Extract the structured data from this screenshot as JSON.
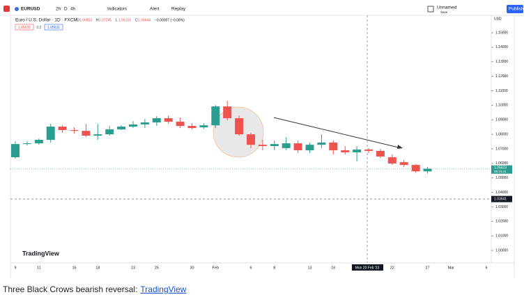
{
  "toolbar": {
    "symbol": "EURUSD",
    "intervals": [
      "2h",
      "D",
      "4h"
    ],
    "indicators": "Indicators",
    "alert": "Alert",
    "replay": "Replay",
    "layout_name": "Unnamed",
    "save": "Save",
    "publish": "Publish"
  },
  "chart_data": {
    "type": "candlestick",
    "title": "Euro / U.S. Dollar · 1D · FXCM",
    "legend_values": [
      "O",
      "1.06853",
      "H",
      "1.07245",
      "L",
      "1.06151",
      "C",
      "1.06644",
      "−0.00087 (−0.08%)"
    ],
    "indicator_boxes": [
      "1.05631",
      "0.2",
      "1.05631"
    ],
    "currency": "USD",
    "logo": "TradingView",
    "up_color": "#2a9d8f",
    "down_color": "#ef5350",
    "categories": [
      "9",
      null,
      "11",
      null,
      null,
      "16",
      null,
      "18",
      null,
      null,
      "23",
      null,
      "25",
      null,
      null,
      "30",
      null,
      "Feb",
      null,
      null,
      "6",
      null,
      "8",
      null,
      null,
      "13",
      null,
      "16",
      null,
      null,
      null,
      null,
      "22",
      null,
      null,
      "27",
      null,
      "Mar",
      null,
      null,
      "6"
    ],
    "open": [
      1.0642,
      1.0733,
      1.0738,
      1.0762,
      1.0853,
      1.0829,
      1.0824,
      1.0791,
      1.08,
      1.0834,
      1.0853,
      1.0868,
      1.0882,
      1.0911,
      1.0887,
      1.0858,
      1.0848,
      1.0862,
      1.0992,
      1.0911,
      1.08,
      1.0728,
      1.0719,
      1.0705,
      1.0738,
      1.069,
      1.0728,
      1.0743,
      1.069,
      1.0676,
      1.0695,
      1.0686,
      1.0642,
      1.0608,
      1.0589,
      1.0545,
      null,
      null,
      null,
      null,
      null
    ],
    "high": [
      1.0752,
      1.0752,
      1.0771,
      1.0872,
      1.0862,
      1.0848,
      1.0872,
      1.0872,
      1.0858,
      1.0862,
      1.0891,
      1.0905,
      1.0925,
      1.093,
      1.0915,
      1.0877,
      1.0877,
      1.1001,
      1.103,
      1.093,
      1.081,
      1.0762,
      1.0757,
      1.0781,
      1.0757,
      1.0742,
      1.08,
      1.0757,
      1.0719,
      1.0719,
      1.0705,
      1.07,
      1.0661,
      1.0623,
      1.0594,
      1.0575,
      null,
      null,
      null,
      null,
      null
    ],
    "low": [
      1.0632,
      1.0723,
      1.0728,
      1.0743,
      1.081,
      1.0805,
      1.0781,
      1.0762,
      1.079,
      1.0829,
      1.0843,
      1.0843,
      1.0858,
      1.0872,
      1.0843,
      1.0834,
      1.0838,
      1.0843,
      1.0896,
      1.079,
      1.0705,
      1.069,
      1.069,
      1.069,
      1.0671,
      1.0671,
      1.0705,
      1.0661,
      1.0661,
      1.0613,
      1.0671,
      1.0637,
      1.059,
      1.0575,
      1.0535,
      1.0532,
      null,
      null,
      null,
      null,
      null
    ],
    "close": [
      1.0733,
      1.0738,
      1.0762,
      1.0853,
      1.0829,
      1.0824,
      1.0791,
      1.08,
      1.0834,
      1.0853,
      1.0868,
      1.0882,
      1.0911,
      1.0887,
      1.0858,
      1.0843,
      1.0862,
      1.0992,
      1.0911,
      1.08,
      1.0728,
      1.0719,
      1.0733,
      1.0738,
      1.069,
      1.0728,
      1.0743,
      1.069,
      1.0676,
      1.0695,
      1.0686,
      1.0647,
      1.0599,
      1.0589,
      1.0545,
      1.0563,
      null,
      null,
      null,
      null,
      null
    ],
    "ylim": [
      0.9914,
      1.162
    ],
    "yticks": [
      {
        "value": 1.15,
        "label": "1.15000"
      },
      {
        "value": 1.14,
        "label": "1.14000"
      },
      {
        "value": 1.13,
        "label": "1.13000"
      },
      {
        "value": 1.12,
        "label": "1.12000"
      },
      {
        "value": 1.11,
        "label": "1.11000"
      },
      {
        "value": 1.1,
        "label": "1.10000"
      },
      {
        "value": 1.09,
        "label": "1.09000"
      },
      {
        "value": 1.08,
        "label": "1.08000"
      },
      {
        "value": 1.07,
        "label": "1.07000"
      },
      {
        "value": 1.06,
        "label": "1.06000"
      },
      {
        "value": 1.05,
        "label": "1.05000"
      },
      {
        "value": 1.04,
        "label": "1.04000"
      },
      {
        "value": 1.03,
        "label": "1.03000"
      },
      {
        "value": 1.02,
        "label": "1.02000"
      },
      {
        "value": 1.01,
        "label": "1.01000"
      },
      {
        "value": 1.0,
        "label": "1.00000"
      }
    ],
    "grid": false,
    "last_price": 1.05623,
    "last_price_time": "06:16:41",
    "crosshair": {
      "date": "Mon 20 Feb '23",
      "price": 1.03541
    }
  },
  "caption": {
    "text": "Three Black Crows bearish reversal:",
    "link": "TradingView"
  }
}
